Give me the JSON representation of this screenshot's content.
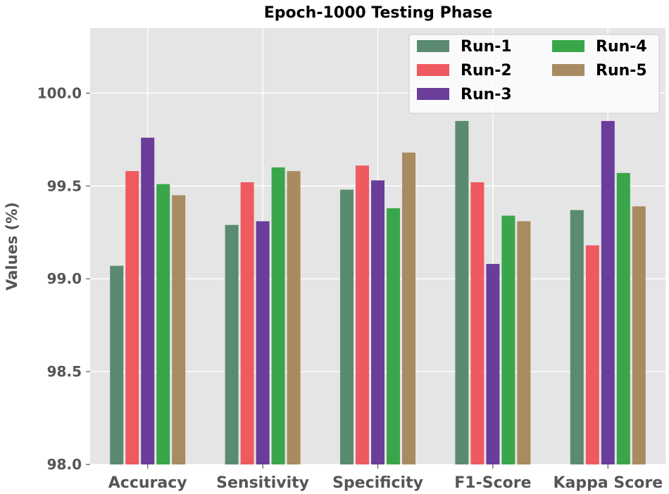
{
  "chart_data": {
    "type": "bar",
    "title": "Epoch-1000 Testing Phase",
    "xlabel": "",
    "ylabel": "Values (%)",
    "ylim": [
      98.0,
      100.35
    ],
    "yticks": [
      "98.0",
      "98.5",
      "99.0",
      "99.5",
      "100.0"
    ],
    "grid": true,
    "legend_position": "top-right",
    "categories": [
      "Accuracy",
      "Sensitivity",
      "Specificity",
      "F1-Score",
      "Kappa Score"
    ],
    "series": [
      {
        "name": "Run-1",
        "color": "#5a8a70",
        "values": [
          99.07,
          99.29,
          99.48,
          99.85,
          99.37
        ]
      },
      {
        "name": "Run-2",
        "color": "#ee5a5f",
        "values": [
          99.58,
          99.52,
          99.61,
          99.52,
          99.18
        ]
      },
      {
        "name": "Run-3",
        "color": "#6a3d9a",
        "values": [
          99.76,
          99.31,
          99.53,
          99.08,
          99.85
        ]
      },
      {
        "name": "Run-4",
        "color": "#3aa64a",
        "values": [
          99.51,
          99.6,
          99.38,
          99.34,
          99.57
        ]
      },
      {
        "name": "Run-5",
        "color": "#a88b61",
        "values": [
          99.45,
          99.58,
          99.68,
          99.31,
          99.39
        ]
      }
    ]
  }
}
